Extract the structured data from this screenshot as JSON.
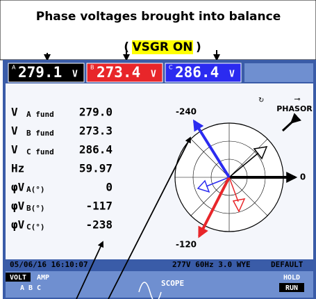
{
  "annotation": {
    "title": "Phase voltages brought into balance",
    "status_prefix": "(",
    "status": "VSGR ON",
    "status_suffix": ")"
  },
  "readings": [
    {
      "phase": "A",
      "value": "279.1",
      "unit": "V",
      "color": "#000000"
    },
    {
      "phase": "B",
      "value": "273.4",
      "unit": "V",
      "color": "#e8262a"
    },
    {
      "phase": "C",
      "value": "286.4",
      "unit": "V",
      "color": "#2b2bf0"
    }
  ],
  "measurements": [
    {
      "symbol": "V",
      "sub": "A fund",
      "value": "279.0"
    },
    {
      "symbol": "V",
      "sub": "B fund",
      "value": "273.3"
    },
    {
      "symbol": "V",
      "sub": "C fund",
      "value": "286.4"
    },
    {
      "symbol": "Hz",
      "sub": "",
      "value": "59.97"
    }
  ],
  "phase_angles": [
    {
      "symbol": "φV",
      "sub": "A(°)",
      "value": 0,
      "color": "#000000"
    },
    {
      "symbol": "φV",
      "sub": "B(°)",
      "value": -117,
      "color": "#e8262a"
    },
    {
      "symbol": "φV",
      "sub": "C(°)",
      "value": -238,
      "color": "#2b2bf0"
    }
  ],
  "phasor": {
    "mode": "PHASOR",
    "labels": [
      "-240",
      "0",
      "-120"
    ]
  },
  "status_bar": {
    "datetime": "05/06/16 16:10:07",
    "config": "277V 60Hz 3.0 WYE",
    "profile": "DEFAULT"
  },
  "softkeys": {
    "volt": "VOLT",
    "amp": "AMP",
    "phases": "A  B  C",
    "scope": "SCOPE",
    "hold": "HOLD",
    "run": "RUN"
  }
}
